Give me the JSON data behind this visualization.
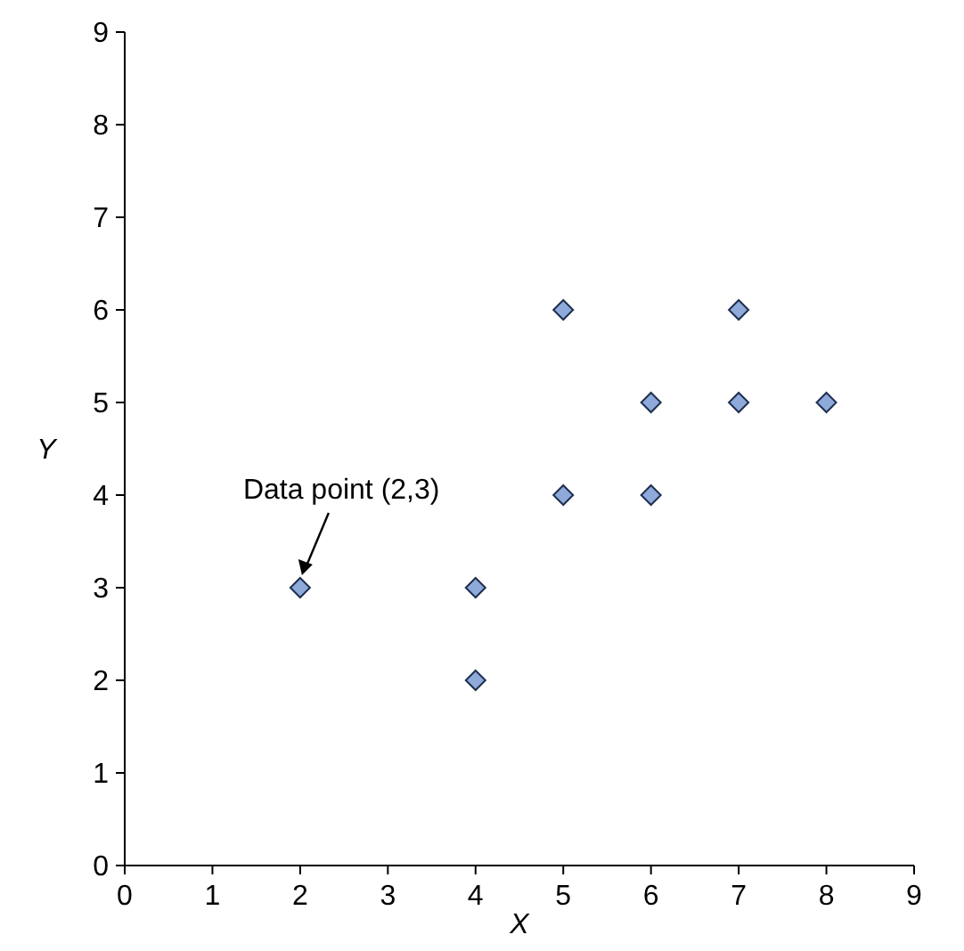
{
  "chart_data": {
    "type": "scatter",
    "xlabel": "X",
    "ylabel": "Y",
    "x": [
      2,
      4,
      4,
      5,
      5,
      6,
      6,
      7,
      7,
      8
    ],
    "series": [
      {
        "color": "#8eaadb",
        "values": [
          3,
          3,
          2,
          6,
          4,
          5,
          4,
          6,
          5,
          5
        ]
      }
    ],
    "xlim": [
      0,
      9
    ],
    "ylim": [
      0,
      9
    ],
    "xticks": [
      0,
      1,
      2,
      3,
      4,
      5,
      6,
      7,
      8,
      9
    ],
    "yticks": [
      0,
      1,
      2,
      3,
      4,
      5,
      6,
      7,
      8,
      9
    ],
    "marker": "diamond",
    "grid": false,
    "annotations": [
      {
        "text": "Data point (2,3)",
        "x": 2,
        "y": 3
      }
    ]
  }
}
